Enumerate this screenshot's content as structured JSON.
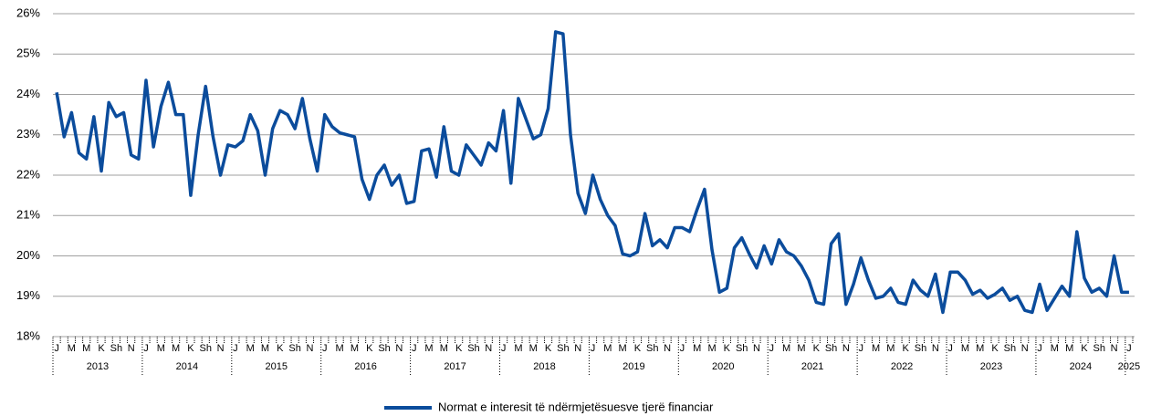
{
  "chart_data": {
    "type": "line",
    "categories": [
      "J",
      null,
      "M",
      null,
      "M",
      null,
      "K",
      null,
      "Sh",
      null,
      "N",
      null,
      "J",
      null,
      "M",
      null,
      "M",
      null,
      "K",
      null,
      "Sh",
      null,
      "N",
      null,
      "J",
      null,
      "M",
      null,
      "M",
      null,
      "K",
      null,
      "Sh",
      null,
      "N",
      null,
      "J",
      null,
      "M",
      null,
      "M",
      null,
      "K",
      null,
      "Sh",
      null,
      "N",
      null,
      "J",
      null,
      "M",
      null,
      "M",
      null,
      "K",
      null,
      "Sh",
      null,
      "N",
      null,
      "J",
      null,
      "M",
      null,
      "M",
      null,
      "K",
      null,
      "Sh",
      null,
      "N",
      null,
      "J",
      null,
      "M",
      null,
      "M",
      null,
      "K",
      null,
      "Sh",
      null,
      "N",
      null,
      "J",
      null,
      "M",
      null,
      "M",
      null,
      "K",
      null,
      "Sh",
      null,
      "N",
      null,
      "J",
      null,
      "M",
      null,
      "M",
      null,
      "K",
      null,
      "Sh",
      null,
      "N",
      null,
      "J",
      null,
      "M",
      null,
      "M",
      null,
      "K",
      null,
      "Sh",
      null,
      "N",
      null,
      "J",
      null,
      "M",
      null,
      "M",
      null,
      "K",
      null,
      "Sh",
      null,
      "N",
      null,
      "J",
      null,
      "M",
      null,
      "M",
      null,
      "K",
      null,
      "Sh",
      null,
      "N",
      null,
      "J"
    ],
    "years": [
      "2013",
      "2014",
      "2015",
      "2016",
      "2017",
      "2018",
      "2019",
      "2020",
      "2021",
      "2022",
      "2023",
      "2024",
      "2025"
    ],
    "series": [
      {
        "name": "Normat e interesit të ndërmjetësuesve tjerë financiar",
        "color": "#0b4c9c",
        "values": [
          24.05,
          22.95,
          23.55,
          22.55,
          22.4,
          23.45,
          22.1,
          23.8,
          23.45,
          23.55,
          22.5,
          22.4,
          24.35,
          22.7,
          23.7,
          24.3,
          23.5,
          23.5,
          21.5,
          23.0,
          24.2,
          22.95,
          22.0,
          22.75,
          22.7,
          22.85,
          23.5,
          23.1,
          22.0,
          23.15,
          23.6,
          23.5,
          23.15,
          23.9,
          22.9,
          22.1,
          23.5,
          23.2,
          23.05,
          23.0,
          22.95,
          21.9,
          21.4,
          22.0,
          22.25,
          21.75,
          22.0,
          21.3,
          21.35,
          22.6,
          22.65,
          21.95,
          23.2,
          22.1,
          22.0,
          22.75,
          22.5,
          22.25,
          22.8,
          22.6,
          23.6,
          21.8,
          23.9,
          23.4,
          22.9,
          23.0,
          23.65,
          25.55,
          25.5,
          23.0,
          21.55,
          21.05,
          22.0,
          21.4,
          21.0,
          20.75,
          20.05,
          20.0,
          20.1,
          21.05,
          20.25,
          20.4,
          20.2,
          20.7,
          20.7,
          20.6,
          21.15,
          21.65,
          20.15,
          19.1,
          19.2,
          20.2,
          20.45,
          20.05,
          19.7,
          20.25,
          19.8,
          20.4,
          20.1,
          20.0,
          19.75,
          19.4,
          18.85,
          18.8,
          20.3,
          20.55,
          18.8,
          19.3,
          19.95,
          19.4,
          18.95,
          19.0,
          19.2,
          18.85,
          18.8,
          19.4,
          19.15,
          19.0,
          19.55,
          18.6,
          19.6,
          19.6,
          19.4,
          19.05,
          19.15,
          18.95,
          19.05,
          19.2,
          18.9,
          19.0,
          18.65,
          18.6,
          19.3,
          18.65,
          18.95,
          19.25,
          19.0,
          20.6,
          19.45,
          19.1,
          19.2,
          19.0,
          20.0,
          19.1,
          19.1
        ]
      }
    ],
    "ylim": [
      18,
      26
    ],
    "yticks": [
      {
        "value": 18,
        "label": "18%"
      },
      {
        "value": 19,
        "label": "19%"
      },
      {
        "value": 20,
        "label": "20%"
      },
      {
        "value": 21,
        "label": "21%"
      },
      {
        "value": 22,
        "label": "22%"
      },
      {
        "value": 23,
        "label": "23%"
      },
      {
        "value": 24,
        "label": "24%"
      },
      {
        "value": 25,
        "label": "25%"
      },
      {
        "value": 26,
        "label": "26%"
      }
    ],
    "grid": true,
    "legend": "bottom"
  }
}
